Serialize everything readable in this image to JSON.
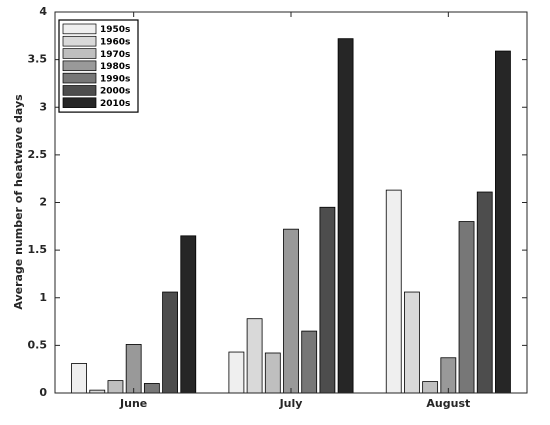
{
  "chart_data": {
    "type": "bar",
    "title": "",
    "xlabel": "",
    "ylabel": "Average number of heatwave days",
    "categories": [
      "June",
      "July",
      "August"
    ],
    "ylim": [
      0,
      4
    ],
    "yticks": [
      "0",
      "0.5",
      "1",
      "1.5",
      "2",
      "2.5",
      "3",
      "3.5",
      "4"
    ],
    "grid": false,
    "legend_position": "top-left",
    "series": [
      {
        "name": "1950s",
        "color": "#efefef",
        "values": [
          0.31,
          0.43,
          2.13
        ]
      },
      {
        "name": "1960s",
        "color": "#d9d9d9",
        "values": [
          0.03,
          0.78,
          1.06
        ]
      },
      {
        "name": "1970s",
        "color": "#bfbfbf",
        "values": [
          0.13,
          0.42,
          0.12
        ]
      },
      {
        "name": "1980s",
        "color": "#999999",
        "values": [
          0.51,
          1.72,
          0.37
        ]
      },
      {
        "name": "1990s",
        "color": "#777777",
        "values": [
          0.1,
          0.65,
          1.8
        ]
      },
      {
        "name": "2000s",
        "color": "#4d4d4d",
        "values": [
          1.06,
          1.95,
          2.11
        ]
      },
      {
        "name": "2010s",
        "color": "#262626",
        "values": [
          1.65,
          3.72,
          3.59
        ]
      }
    ]
  }
}
